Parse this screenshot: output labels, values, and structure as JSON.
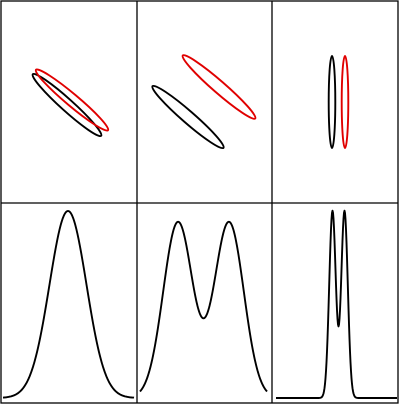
{
  "figure": {
    "colors": {
      "first": "#000000",
      "second": "#e00000",
      "grid": "#000000",
      "background": "#ffffff"
    },
    "panels": [
      {
        "ellipses": [
          {
            "series": "first",
            "orientation": "diagonal"
          },
          {
            "series": "second",
            "orientation": "diagonal"
          }
        ],
        "profile": "single-peak"
      },
      {
        "ellipses": [
          {
            "series": "first",
            "orientation": "diagonal"
          },
          {
            "series": "second",
            "orientation": "diagonal"
          }
        ],
        "profile": "double-peak"
      },
      {
        "ellipses": [
          {
            "series": "first",
            "orientation": "vertical"
          },
          {
            "series": "second",
            "orientation": "vertical"
          }
        ],
        "profile": "narrow-double-peak"
      }
    ]
  }
}
